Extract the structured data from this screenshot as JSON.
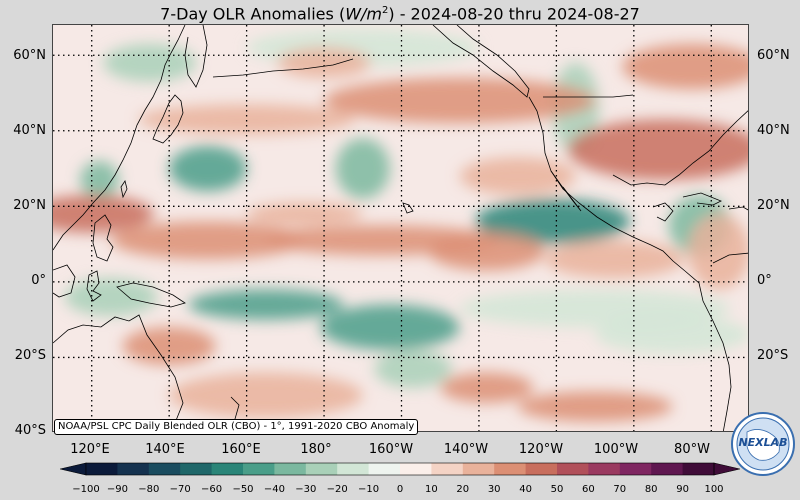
{
  "title": "7-Day OLR Anomalies (W/m²) - 2024-08-20 thru 2024-08-27",
  "title_parts": {
    "prefix": "7-Day OLR Anomalies (",
    "unit": "W/m",
    "sup": "2",
    "suffix": ") - 2024-08-20 thru 2024-08-27"
  },
  "source_note": "NOAA/PSL CPC Daily Blended OLR (CBO) - 1°, 1991-2020 CBO Anomaly",
  "lat_labels": [
    "60°N",
    "40°N",
    "20°N",
    "0°",
    "20°S",
    "40°S"
  ],
  "lon_labels": [
    "120°E",
    "140°E",
    "160°E",
    "180°",
    "160°W",
    "140°W",
    "120°W",
    "100°W",
    "80°W"
  ],
  "colorbar": {
    "ticks": [
      "−100",
      "−90",
      "−80",
      "−70",
      "−60",
      "−50",
      "−40",
      "−30",
      "−20",
      "−10",
      "0",
      "10",
      "20",
      "30",
      "40",
      "50",
      "60",
      "70",
      "80",
      "90",
      "100"
    ],
    "colors": [
      "#0b1a3a",
      "#15324f",
      "#1a4c5f",
      "#1f6769",
      "#2a8578",
      "#4a9e89",
      "#7bb89f",
      "#a9d0b8",
      "#d2e6d6",
      "#eef4ef",
      "#fbefea",
      "#f4d3c5",
      "#e9b29b",
      "#dc8f74",
      "#c86e5d",
      "#b1505a",
      "#9a3a60",
      "#7f2661",
      "#5f1750",
      "#3f0c38"
    ]
  },
  "logo": {
    "text": "NEXLAB",
    "icon": "globe-icon"
  },
  "map": {
    "extent": {
      "lon": [
        110,
        290
      ],
      "lat": [
        -40,
        68
      ]
    },
    "blobs": [
      {
        "type": "neg",
        "lon": 239,
        "lat": 16,
        "rx": 20,
        "ry": 6,
        "v": -55
      },
      {
        "type": "neg",
        "lon": 150,
        "lat": 30,
        "rx": 10,
        "ry": 6,
        "v": -50
      },
      {
        "type": "neg",
        "lon": 122,
        "lat": 27,
        "rx": 5,
        "ry": 5,
        "v": -35
      },
      {
        "type": "neg",
        "lon": 190,
        "lat": 30,
        "rx": 7,
        "ry": 8,
        "v": -35
      },
      {
        "type": "neg",
        "lon": 190,
        "lat": 62,
        "rx": 30,
        "ry": 5,
        "v": -20
      },
      {
        "type": "neg",
        "lon": 245,
        "lat": 46,
        "rx": 6,
        "ry": 12,
        "v": -30
      },
      {
        "type": "neg",
        "lon": 135,
        "lat": 58,
        "rx": 12,
        "ry": 5,
        "v": -25
      },
      {
        "type": "neg",
        "lon": 250,
        "lat": -7,
        "rx": 35,
        "ry": 5,
        "v": -20
      },
      {
        "type": "neg",
        "lon": 165,
        "lat": -6,
        "rx": 20,
        "ry": 4,
        "v": -50
      },
      {
        "type": "neg",
        "lon": 197,
        "lat": -12,
        "rx": 18,
        "ry": 6,
        "v": -45
      },
      {
        "type": "neg",
        "lon": 203,
        "lat": -23,
        "rx": 10,
        "ry": 5,
        "v": -30
      },
      {
        "type": "neg",
        "lon": 125,
        "lat": -4,
        "rx": 12,
        "ry": 5,
        "v": -25
      },
      {
        "type": "neg",
        "lon": 277,
        "lat": 15,
        "rx": 8,
        "ry": 8,
        "v": -35
      },
      {
        "type": "neg",
        "lon": 270,
        "lat": -14,
        "rx": 20,
        "ry": 5,
        "v": -15
      },
      {
        "type": "pos",
        "lon": 120,
        "lat": 18,
        "rx": 16,
        "ry": 5,
        "v": 40
      },
      {
        "type": "pos",
        "lon": 150,
        "lat": 11,
        "rx": 25,
        "ry": 5,
        "v": 30
      },
      {
        "type": "pos",
        "lon": 195,
        "lat": 11,
        "rx": 30,
        "ry": 4,
        "v": 30
      },
      {
        "type": "pos",
        "lon": 222,
        "lat": 8,
        "rx": 15,
        "ry": 5,
        "v": 35
      },
      {
        "type": "pos",
        "lon": 268,
        "lat": 35,
        "rx": 25,
        "ry": 8,
        "v": 40
      },
      {
        "type": "pos",
        "lon": 275,
        "lat": 57,
        "rx": 18,
        "ry": 6,
        "v": 35
      },
      {
        "type": "pos",
        "lon": 215,
        "lat": 48,
        "rx": 35,
        "ry": 6,
        "v": 30
      },
      {
        "type": "pos",
        "lon": 160,
        "lat": 43,
        "rx": 28,
        "ry": 4,
        "v": 25
      },
      {
        "type": "pos",
        "lon": 175,
        "lat": 18,
        "rx": 15,
        "ry": 3,
        "v": 25
      },
      {
        "type": "pos",
        "lon": 140,
        "lat": -17,
        "rx": 12,
        "ry": 5,
        "v": 35
      },
      {
        "type": "pos",
        "lon": 255,
        "lat": 6,
        "rx": 18,
        "ry": 5,
        "v": 25
      },
      {
        "type": "pos",
        "lon": 222,
        "lat": -28,
        "rx": 12,
        "ry": 4,
        "v": 35
      },
      {
        "type": "pos",
        "lon": 250,
        "lat": -33,
        "rx": 20,
        "ry": 4,
        "v": 30
      },
      {
        "type": "pos",
        "lon": 282,
        "lat": 8,
        "rx": 8,
        "ry": 10,
        "v": 25
      },
      {
        "type": "pos",
        "lon": 165,
        "lat": -30,
        "rx": 25,
        "ry": 6,
        "v": 20
      },
      {
        "type": "pos",
        "lon": 230,
        "lat": 28,
        "rx": 15,
        "ry": 5,
        "v": 20
      },
      {
        "type": "pos",
        "lon": 180,
        "lat": 58,
        "rx": 12,
        "ry": 4,
        "v": 25
      }
    ]
  }
}
